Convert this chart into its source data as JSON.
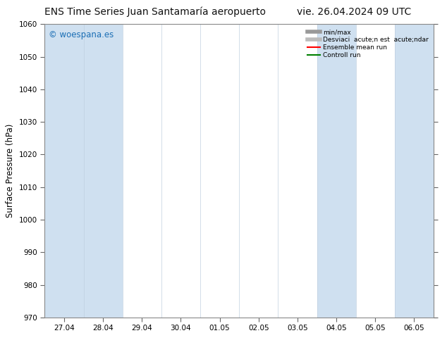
{
  "title_left": "ENS Time Series Juan Santamaría aeropuerto",
  "title_right": "vie. 26.04.2024 09 UTC",
  "ylabel": "Surface Pressure (hPa)",
  "ylim": [
    970,
    1060
  ],
  "yticks": [
    970,
    980,
    990,
    1000,
    1010,
    1020,
    1030,
    1040,
    1050,
    1060
  ],
  "xtick_labels": [
    "27.04",
    "28.04",
    "29.04",
    "30.04",
    "01.05",
    "02.05",
    "03.05",
    "04.05",
    "05.05",
    "06.05"
  ],
  "n_xticks": 10,
  "shade_color": "#cfe0f0",
  "background_color": "#ffffff",
  "plot_bg_color": "#ffffff",
  "watermark_text": "© woespana.es",
  "watermark_color": "#1a6eb5",
  "legend_labels": [
    "min/max",
    "Desviaci  acute;n est  acute;ndar",
    "Ensemble mean run",
    "Controll run"
  ],
  "legend_colors": [
    "#999999",
    "#bbbbbb",
    "#ff0000",
    "#008000"
  ],
  "legend_lws": [
    4,
    4,
    1.5,
    1.5
  ],
  "title_fontsize": 10,
  "tick_fontsize": 7.5,
  "ylabel_fontsize": 8.5,
  "fig_width": 6.34,
  "fig_height": 4.9,
  "dpi": 100
}
